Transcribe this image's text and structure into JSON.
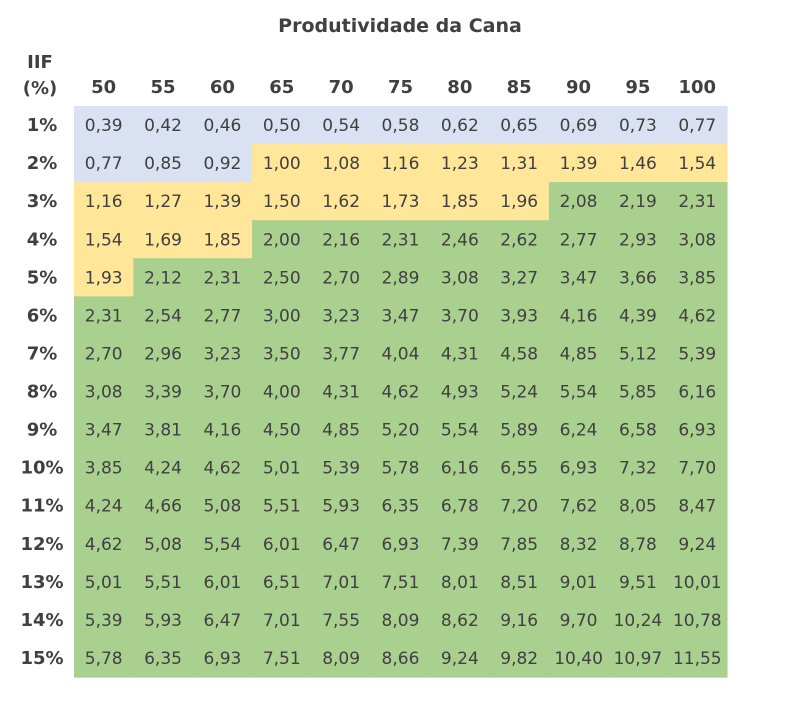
{
  "chart_data": {
    "type": "table",
    "title": "Produtividade da Cana",
    "row_header_label": [
      "IIF",
      "(%)"
    ],
    "columns": [
      "50",
      "55",
      "60",
      "65",
      "70",
      "75",
      "80",
      "85",
      "90",
      "95",
      "100"
    ],
    "rows": [
      "1%",
      "2%",
      "3%",
      "4%",
      "5%",
      "6%",
      "7%",
      "8%",
      "9%",
      "10%",
      "11%",
      "12%",
      "13%",
      "14%",
      "15%"
    ],
    "values": [
      [
        "0,39",
        "0,42",
        "0,46",
        "0,50",
        "0,54",
        "0,58",
        "0,62",
        "0,65",
        "0,69",
        "0,73",
        "0,77"
      ],
      [
        "0,77",
        "0,85",
        "0,92",
        "1,00",
        "1,08",
        "1,16",
        "1,23",
        "1,31",
        "1,39",
        "1,46",
        "1,54"
      ],
      [
        "1,16",
        "1,27",
        "1,39",
        "1,50",
        "1,62",
        "1,73",
        "1,85",
        "1,96",
        "2,08",
        "2,19",
        "2,31"
      ],
      [
        "1,54",
        "1,69",
        "1,85",
        "2,00",
        "2,16",
        "2,31",
        "2,46",
        "2,62",
        "2,77",
        "2,93",
        "3,08"
      ],
      [
        "1,93",
        "2,12",
        "2,31",
        "2,50",
        "2,70",
        "2,89",
        "3,08",
        "3,27",
        "3,47",
        "3,66",
        "3,85"
      ],
      [
        "2,31",
        "2,54",
        "2,77",
        "3,00",
        "3,23",
        "3,47",
        "3,70",
        "3,93",
        "4,16",
        "4,39",
        "4,62"
      ],
      [
        "2,70",
        "2,96",
        "3,23",
        "3,50",
        "3,77",
        "4,04",
        "4,31",
        "4,58",
        "4,85",
        "5,12",
        "5,39"
      ],
      [
        "3,08",
        "3,39",
        "3,70",
        "4,00",
        "4,31",
        "4,62",
        "4,93",
        "5,24",
        "5,54",
        "5,85",
        "6,16"
      ],
      [
        "3,47",
        "3,81",
        "4,16",
        "4,50",
        "4,85",
        "5,20",
        "5,54",
        "5,89",
        "6,24",
        "6,58",
        "6,93"
      ],
      [
        "3,85",
        "4,24",
        "4,62",
        "5,01",
        "5,39",
        "5,78",
        "6,16",
        "6,55",
        "6,93",
        "7,32",
        "7,70"
      ],
      [
        "4,24",
        "4,66",
        "5,08",
        "5,51",
        "5,93",
        "6,35",
        "6,78",
        "7,20",
        "7,62",
        "8,05",
        "8,47"
      ],
      [
        "4,62",
        "5,08",
        "5,54",
        "6,01",
        "6,47",
        "6,93",
        "7,39",
        "7,85",
        "8,32",
        "8,78",
        "9,24"
      ],
      [
        "5,01",
        "5,51",
        "6,01",
        "6,51",
        "7,01",
        "7,51",
        "8,01",
        "8,51",
        "9,01",
        "9,51",
        "10,01"
      ],
      [
        "5,39",
        "5,93",
        "6,47",
        "7,01",
        "7,55",
        "8,09",
        "8,62",
        "9,16",
        "9,70",
        "10,24",
        "10,78"
      ],
      [
        "5,78",
        "6,35",
        "6,93",
        "7,51",
        "8,09",
        "8,66",
        "9,24",
        "9,82",
        "10,40",
        "10,97",
        "11,55"
      ]
    ],
    "cell_zones": [
      [
        "b",
        "b",
        "b",
        "b",
        "b",
        "b",
        "b",
        "b",
        "b",
        "b",
        "b"
      ],
      [
        "b",
        "b",
        "b",
        "y",
        "y",
        "y",
        "y",
        "y",
        "y",
        "y",
        "y"
      ],
      [
        "y",
        "y",
        "y",
        "y",
        "y",
        "y",
        "y",
        "y",
        "g",
        "g",
        "g"
      ],
      [
        "y",
        "y",
        "y",
        "g",
        "g",
        "g",
        "g",
        "g",
        "g",
        "g",
        "g"
      ],
      [
        "y",
        "g",
        "g",
        "g",
        "g",
        "g",
        "g",
        "g",
        "g",
        "g",
        "g"
      ],
      [
        "g",
        "g",
        "g",
        "g",
        "g",
        "g",
        "g",
        "g",
        "g",
        "g",
        "g"
      ],
      [
        "g",
        "g",
        "g",
        "g",
        "g",
        "g",
        "g",
        "g",
        "g",
        "g",
        "g"
      ],
      [
        "g",
        "g",
        "g",
        "g",
        "g",
        "g",
        "g",
        "g",
        "g",
        "g",
        "g"
      ],
      [
        "g",
        "g",
        "g",
        "g",
        "g",
        "g",
        "g",
        "g",
        "g",
        "g",
        "g"
      ],
      [
        "g",
        "g",
        "g",
        "g",
        "g",
        "g",
        "g",
        "g",
        "g",
        "g",
        "g"
      ],
      [
        "g",
        "g",
        "g",
        "g",
        "g",
        "g",
        "g",
        "g",
        "g",
        "g",
        "g"
      ],
      [
        "g",
        "g",
        "g",
        "g",
        "g",
        "g",
        "g",
        "g",
        "g",
        "g",
        "g"
      ],
      [
        "g",
        "g",
        "g",
        "g",
        "g",
        "g",
        "g",
        "g",
        "g",
        "g",
        "g"
      ],
      [
        "g",
        "g",
        "g",
        "g",
        "g",
        "g",
        "g",
        "g",
        "g",
        "g",
        "g"
      ],
      [
        "g",
        "g",
        "g",
        "g",
        "g",
        "g",
        "g",
        "g",
        "g",
        "g",
        "g"
      ]
    ],
    "zone_colors": {
      "b": "#d9e1f2",
      "y": "#ffe699",
      "g": "#a9d08e"
    }
  }
}
